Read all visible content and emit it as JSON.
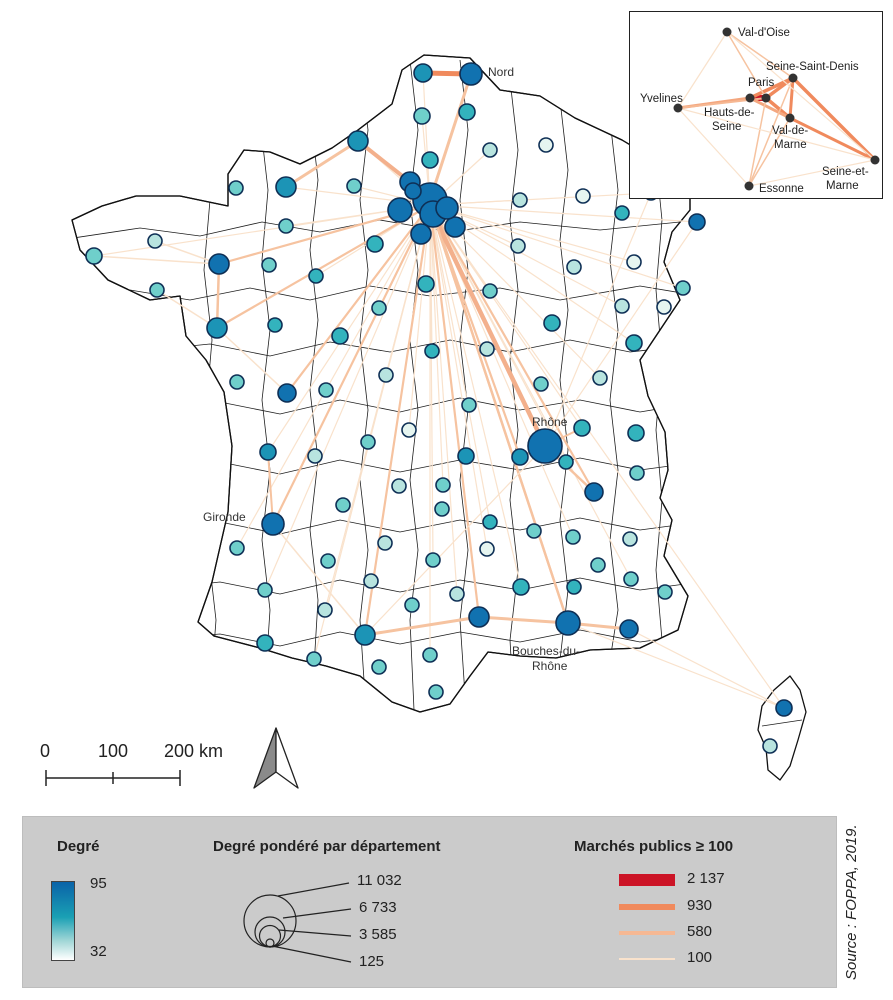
{
  "map": {
    "labels": {
      "nord": "Nord",
      "rhone": "Rhône",
      "gironde": "Gironde",
      "bdr_line1": "Bouches-du-",
      "bdr_line2": "Rhône"
    }
  },
  "inset": {
    "labels": {
      "val_oise": "Val-d'Oise",
      "seine_saint_denis": "Seine-Saint-Denis",
      "yvelines": "Yvelines",
      "paris": "Paris",
      "hauts_de_seine_1": "Hauts-de-",
      "hauts_de_seine_2": "Seine",
      "val_de_marne_1": "Val-de-",
      "val_de_marne_2": "Marne",
      "essonne": "Essonne",
      "seine_et_marne_1": "Seine-et-",
      "seine_et_marne_2": "Marne"
    }
  },
  "scale_bar": {
    "labels": [
      "0",
      "100",
      "200 km"
    ]
  },
  "legend": {
    "degree": {
      "title": "Degré",
      "max": "95",
      "min": "32",
      "color_high": "#0a63a8",
      "color_mid": "#1aa0b4",
      "color_low": "#ffffff"
    },
    "weighted": {
      "title": "Degré pondéré par département",
      "values": [
        "11 032",
        "6 733",
        "3 585",
        "125"
      ]
    },
    "flows": {
      "title": "Marchés publics  ≥  100",
      "items": [
        {
          "label": "2 137",
          "color": "#cc1426"
        },
        {
          "label": "930",
          "color": "#f08a5d"
        },
        {
          "label": "580",
          "color": "#f6b893"
        },
        {
          "label": "100",
          "color": "#f9e2cc"
        }
      ]
    }
  },
  "source": "Source : FOPPA, 2019."
}
